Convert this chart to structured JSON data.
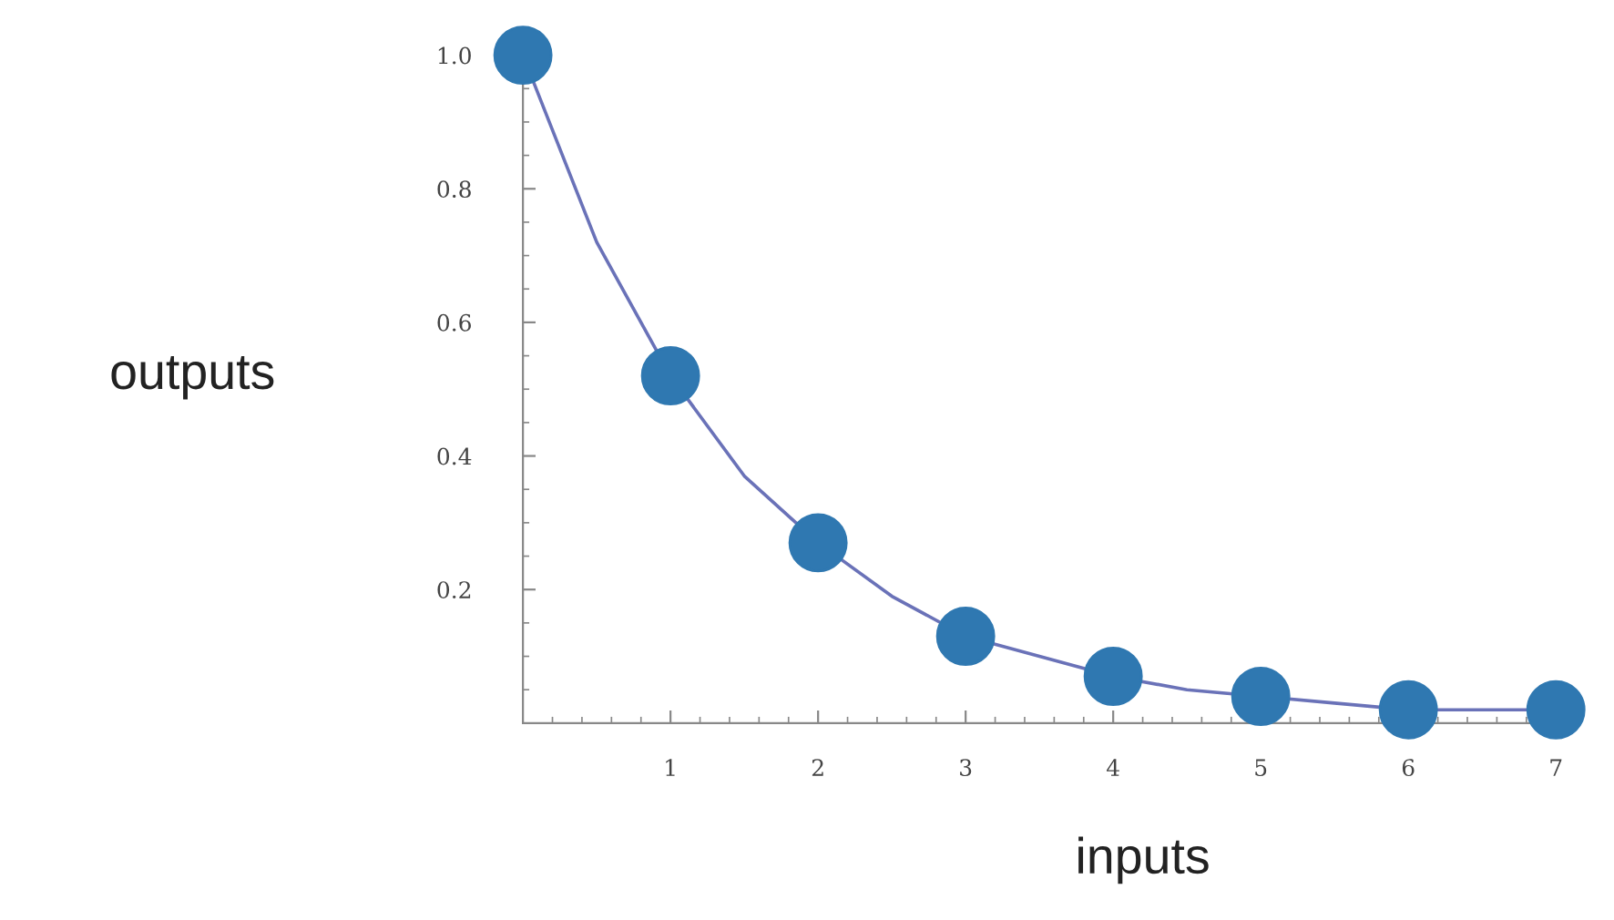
{
  "chart_data": {
    "type": "scatter",
    "xlabel": "inputs",
    "ylabel": "outputs",
    "series": [
      {
        "type": "line",
        "color": "#6a72b8",
        "x": [
          0,
          0.5,
          1,
          1.5,
          2,
          2.5,
          3,
          3.5,
          4,
          4.5,
          5,
          5.5,
          6,
          6.5,
          7
        ],
        "values": [
          1.0,
          0.72,
          0.52,
          0.37,
          0.27,
          0.19,
          0.13,
          0.1,
          0.07,
          0.05,
          0.04,
          0.03,
          0.02,
          0.02,
          0.02
        ],
        "marker": "none"
      },
      {
        "color": "#2f78b1",
        "x": [
          0,
          1,
          2,
          3,
          4,
          5,
          6,
          7
        ],
        "values": [
          1.0,
          0.52,
          0.27,
          0.13,
          0.07,
          0.04,
          0.02,
          0.02
        ],
        "marker": "circle"
      }
    ],
    "xlim": [
      0,
      7
    ],
    "ylim": [
      0,
      1
    ],
    "xticks": [
      1,
      2,
      3,
      4,
      5,
      6,
      7
    ],
    "yticks": [
      0.2,
      0.4,
      0.6,
      0.8,
      {
        "value": 1,
        "label": "1.0"
      }
    ],
    "grid": false,
    "legend": false
  }
}
